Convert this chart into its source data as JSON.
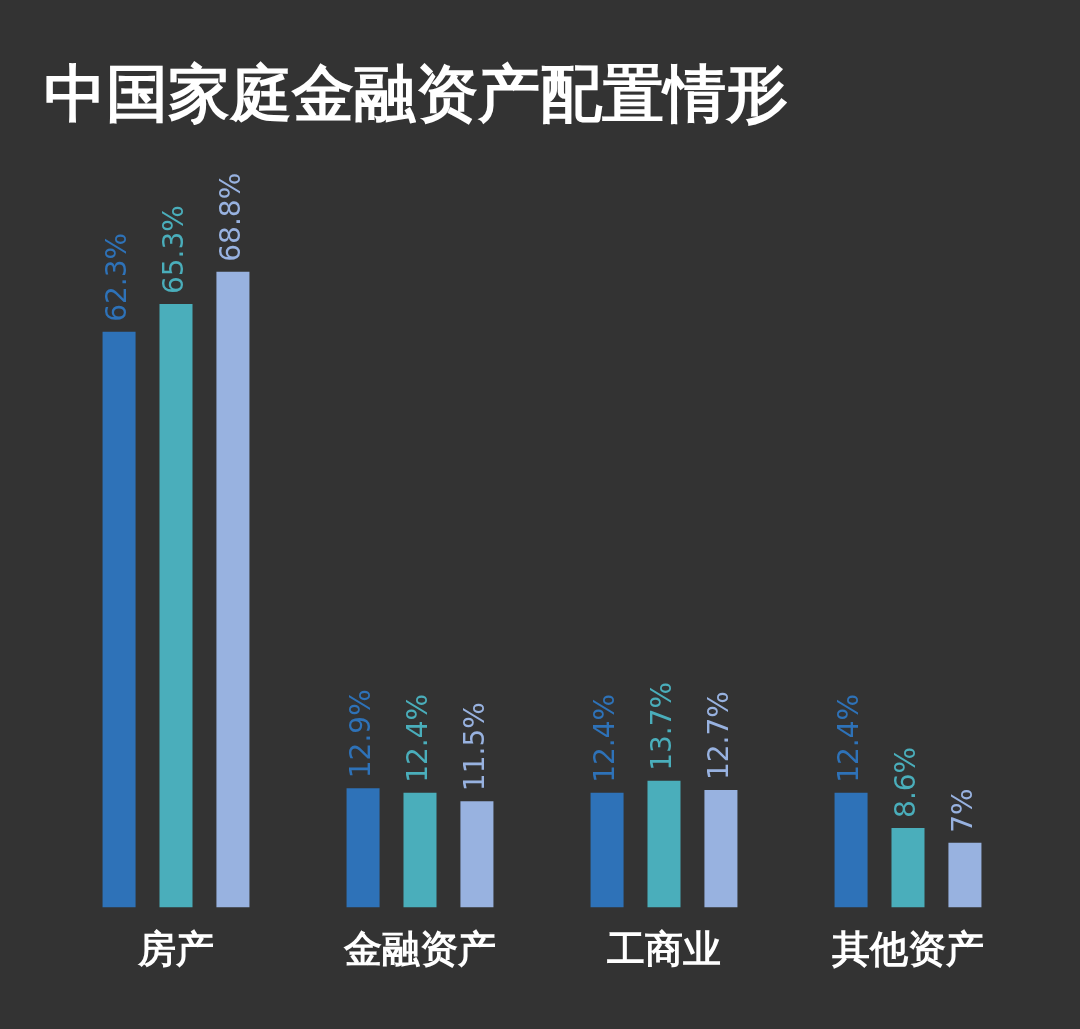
{
  "chart_data": {
    "type": "bar",
    "title": "中国家庭金融资产配置情形",
    "categories": [
      "房产",
      "金融资产",
      "工商业",
      "其他资产"
    ],
    "series": [
      {
        "color": "#2e72b8",
        "values": [
          62.3,
          12.9,
          12.4,
          12.4
        ],
        "value_labels": [
          "62.3%",
          "12.9%",
          "12.4%",
          "12.4%"
        ]
      },
      {
        "color": "#4aaebb",
        "values": [
          65.3,
          12.4,
          13.7,
          8.6
        ],
        "value_labels": [
          "65.3%",
          "12.4%",
          "13.7%",
          "8.6%"
        ]
      },
      {
        "color": "#98b2e0",
        "values": [
          68.8,
          11.5,
          12.7,
          7
        ],
        "value_labels": [
          "68.8%",
          "11.5%",
          "12.7%",
          "7%"
        ]
      }
    ]
  }
}
